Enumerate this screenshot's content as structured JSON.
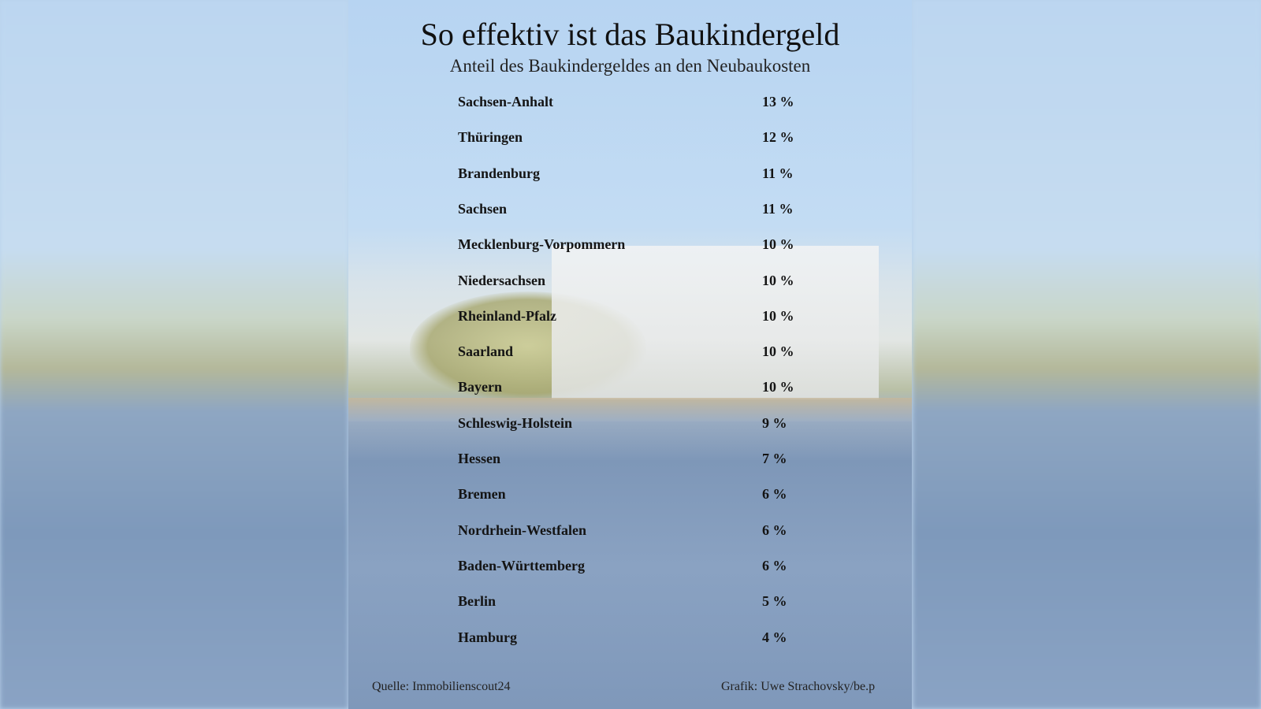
{
  "chart_data": {
    "type": "table",
    "title": "So effektiv ist das Baukindergeld",
    "subtitle": "Anteil des Baukindergeldes an den Neubaukosten",
    "unit": "%",
    "rows": [
      {
        "label": "Sachsen-Anhalt",
        "value": 13,
        "display": "13 %"
      },
      {
        "label": "Thüringen",
        "value": 12,
        "display": "12 %"
      },
      {
        "label": "Brandenburg",
        "value": 11,
        "display": "11 %"
      },
      {
        "label": "Sachsen",
        "value": 11,
        "display": "11 %"
      },
      {
        "label": "Mecklenburg-Vorpommern",
        "value": 10,
        "display": "10 %"
      },
      {
        "label": "Niedersachsen",
        "value": 10,
        "display": "10 %"
      },
      {
        "label": "Rheinland-Pfalz",
        "value": 10,
        "display": "10 %"
      },
      {
        "label": "Saarland",
        "value": 10,
        "display": "10 %"
      },
      {
        "label": "Bayern",
        "value": 10,
        "display": "10 %"
      },
      {
        "label": "Schleswig-Holstein",
        "value": 9,
        "display": "9 %"
      },
      {
        "label": "Hessen",
        "value": 7,
        "display": "7 %"
      },
      {
        "label": "Bremen",
        "value": 6,
        "display": "6 %"
      },
      {
        "label": "Nordrhein-Westfalen",
        "value": 6,
        "display": "6 %"
      },
      {
        "label": "Baden-Württemberg",
        "value": 6,
        "display": "6 %"
      },
      {
        "label": "Berlin",
        "value": 5,
        "display": "5 %"
      },
      {
        "label": "Hamburg",
        "value": 4,
        "display": "4 %"
      }
    ],
    "source": "Quelle: Immobilienscout24",
    "credit": "Grafik: Uwe Strachovsky/be.p"
  }
}
